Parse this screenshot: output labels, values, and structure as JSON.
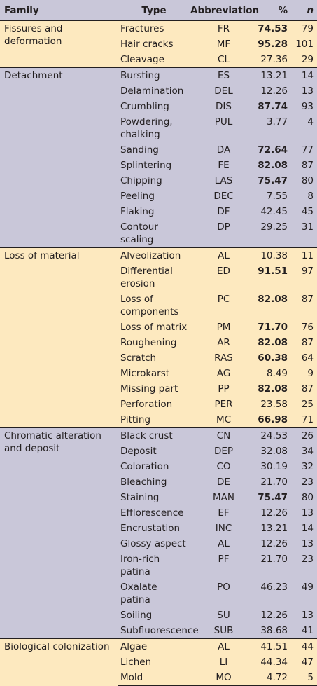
{
  "header": {
    "family": "Family",
    "type": "Type",
    "abbreviation": "Abbreviation",
    "percent": "%",
    "n": "n"
  },
  "colors": {
    "odd_group_bg": "#fde9bf",
    "even_group_bg": "#c9c7d9",
    "header_bg": "#c9c7d9",
    "text": "#231f20"
  },
  "groups": [
    {
      "family": "Fissures and deformation",
      "rows": [
        {
          "type": "Fractures",
          "abbr": "FR",
          "pct": "74.53",
          "n": "79",
          "bold": true
        },
        {
          "type": "Hair cracks",
          "abbr": "MF",
          "pct": "95.28",
          "n": "101",
          "bold": true
        },
        {
          "type": "Cleavage",
          "abbr": "CL",
          "pct": "27.36",
          "n": "29",
          "bold": false
        }
      ]
    },
    {
      "family": "Detachment",
      "rows": [
        {
          "type": "Bursting",
          "abbr": "ES",
          "pct": "13.21",
          "n": "14",
          "bold": false
        },
        {
          "type": "Delamination",
          "abbr": "DEL",
          "pct": "12.26",
          "n": "13",
          "bold": false
        },
        {
          "type": "Crumbling",
          "abbr": "DIS",
          "pct": "87.74",
          "n": "93",
          "bold": true
        },
        {
          "type": "Powdering, chalking",
          "abbr": "PUL",
          "pct": "3.77",
          "n": "4",
          "bold": false
        },
        {
          "type": "Sanding",
          "abbr": "DA",
          "pct": "72.64",
          "n": "77",
          "bold": true
        },
        {
          "type": "Splintering",
          "abbr": "FE",
          "pct": "82.08",
          "n": "87",
          "bold": true
        },
        {
          "type": "Chipping",
          "abbr": "LAS",
          "pct": "75.47",
          "n": "80",
          "bold": true
        },
        {
          "type": "Peeling",
          "abbr": "DEC",
          "pct": "7.55",
          "n": "8",
          "bold": false
        },
        {
          "type": "Flaking",
          "abbr": "DF",
          "pct": "42.45",
          "n": "45",
          "bold": false
        },
        {
          "type": "Contour scaling",
          "abbr": "DP",
          "pct": "29.25",
          "n": "31",
          "bold": false
        }
      ]
    },
    {
      "family": "Loss of material",
      "rows": [
        {
          "type": "Alveolization",
          "abbr": "AL",
          "pct": "10.38",
          "n": "11",
          "bold": false
        },
        {
          "type": "Differential erosion",
          "abbr": "ED",
          "pct": "91.51",
          "n": "97",
          "bold": true
        },
        {
          "type": "Loss of components",
          "abbr": "PC",
          "pct": "82.08",
          "n": "87",
          "bold": true
        },
        {
          "type": "Loss of matrix",
          "abbr": "PM",
          "pct": "71.70",
          "n": "76",
          "bold": true
        },
        {
          "type": "Roughening",
          "abbr": "AR",
          "pct": "82.08",
          "n": "87",
          "bold": true
        },
        {
          "type": "Scratch",
          "abbr": "RAS",
          "pct": "60.38",
          "n": "64",
          "bold": true
        },
        {
          "type": "Microkarst",
          "abbr": "AG",
          "pct": "8.49",
          "n": "9",
          "bold": false
        },
        {
          "type": "Missing part",
          "abbr": "PP",
          "pct": "82.08",
          "n": "87",
          "bold": true
        },
        {
          "type": "Perforation",
          "abbr": "PER",
          "pct": "23.58",
          "n": "25",
          "bold": false
        },
        {
          "type": "Pitting",
          "abbr": "MC",
          "pct": "66.98",
          "n": "71",
          "bold": true
        }
      ]
    },
    {
      "family": "Chromatic alteration and deposit",
      "rows": [
        {
          "type": "Black crust",
          "abbr": "CN",
          "pct": "24.53",
          "n": "26",
          "bold": false
        },
        {
          "type": "Deposit",
          "abbr": "DEP",
          "pct": "32.08",
          "n": "34",
          "bold": false
        },
        {
          "type": "Coloration",
          "abbr": "CO",
          "pct": "30.19",
          "n": "32",
          "bold": false
        },
        {
          "type": "Bleaching",
          "abbr": "DE",
          "pct": "21.70",
          "n": "23",
          "bold": false
        },
        {
          "type": "Staining",
          "abbr": "MAN",
          "pct": "75.47",
          "n": "80",
          "bold": true
        },
        {
          "type": "Efflorescence",
          "abbr": "EF",
          "pct": "12.26",
          "n": "13",
          "bold": false
        },
        {
          "type": "Encrustation",
          "abbr": "INC",
          "pct": "13.21",
          "n": "14",
          "bold": false
        },
        {
          "type": "Glossy aspect",
          "abbr": "AL",
          "pct": "12.26",
          "n": "13",
          "bold": false
        },
        {
          "type": "Iron-rich patina",
          "abbr": "PF",
          "pct": "21.70",
          "n": "23",
          "bold": false
        },
        {
          "type": "Oxalate patina",
          "abbr": "PO",
          "pct": "46.23",
          "n": "49",
          "bold": false
        },
        {
          "type": "Soiling",
          "abbr": "SU",
          "pct": "12.26",
          "n": "13",
          "bold": false
        },
        {
          "type": "Subfluorescence",
          "abbr": "SUB",
          "pct": "38.68",
          "n": "41",
          "bold": false
        }
      ]
    },
    {
      "family": "Biological colonization",
      "rows": [
        {
          "type": "Algae",
          "abbr": "AL",
          "pct": "41.51",
          "n": "44",
          "bold": false
        },
        {
          "type": "Lichen",
          "abbr": "LI",
          "pct": "44.34",
          "n": "47",
          "bold": false
        },
        {
          "type": "Mold",
          "abbr": "MO",
          "pct": "4.72",
          "n": "5",
          "bold": false
        }
      ]
    }
  ]
}
